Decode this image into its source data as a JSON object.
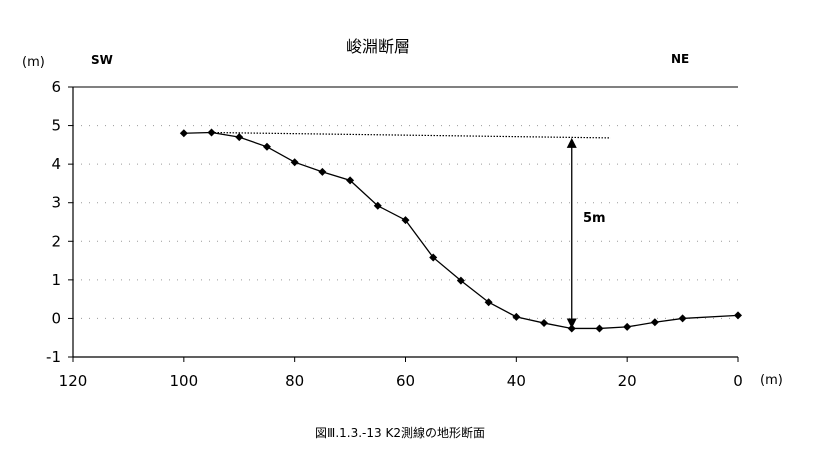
{
  "chart_data": {
    "type": "line",
    "title": "峻淵断層",
    "y_unit": "(m)",
    "x_unit": "(m)",
    "left_label": "SW",
    "right_label": "NE",
    "xlim": [
      120,
      0
    ],
    "ylim": [
      -1,
      6
    ],
    "x_ticks": [
      "120",
      "100",
      "80",
      "60",
      "40",
      "20",
      "0"
    ],
    "y_ticks": [
      "6",
      "5",
      "4",
      "3",
      "2",
      "1",
      "0",
      "-1"
    ],
    "grid": "dotted horizontal",
    "series": [
      {
        "x": [
          100,
          95,
          90,
          85,
          80,
          75,
          70,
          65,
          60,
          55,
          50,
          45,
          40,
          35,
          30,
          25,
          20,
          15,
          10,
          0
        ],
        "y": [
          4.8,
          4.82,
          4.7,
          4.45,
          4.05,
          3.8,
          3.58,
          2.92,
          2.55,
          1.58,
          0.98,
          0.42,
          0.04,
          -0.12,
          -0.26,
          -0.26,
          -0.22,
          -0.1,
          0.0,
          0.08
        ]
      }
    ],
    "reference_line": {
      "x": [
        95,
        23
      ],
      "y": [
        4.82,
        4.68
      ]
    },
    "annotation": {
      "label": "5m",
      "x": 30,
      "y_top": 4.68,
      "y_bottom": -0.26
    }
  },
  "caption": "図Ⅲ.1.3.-13  K2測線の地形断面"
}
